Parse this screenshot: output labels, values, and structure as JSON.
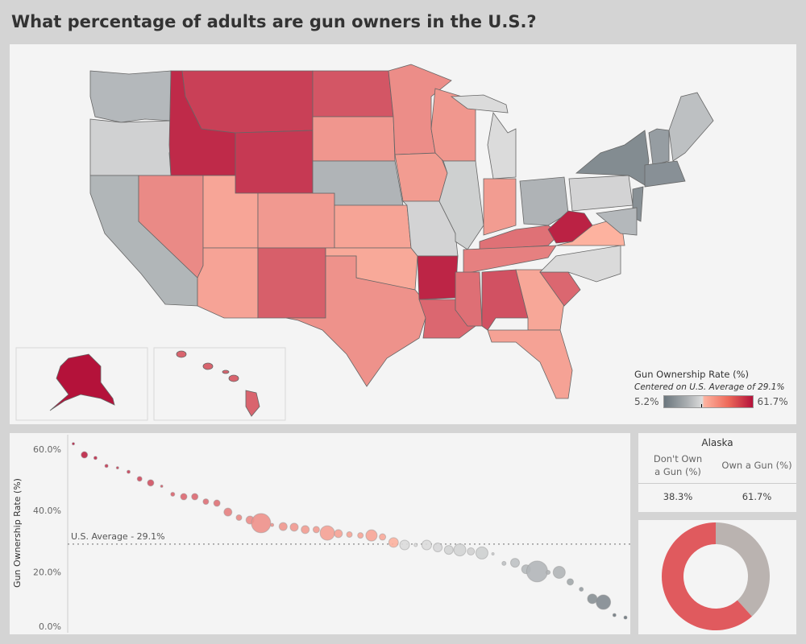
{
  "title": "What percentage of adults are gun owners in the U.S.?",
  "legend": {
    "title": "Gun Ownership Rate (%)",
    "subtitle": "Centered on U.S. Average of 29.1%",
    "min_label": "5.2%",
    "max_label": "61.7%"
  },
  "colors": {
    "low": "#6b767d",
    "mid_low": "#dcdcdc",
    "mid_high": "#fdb3a0",
    "high": "#b4123a",
    "donut_own": "#e05a5e",
    "donut_not": "#bab3b0"
  },
  "map_states": [
    {
      "id": "WA",
      "value": 20.7
    },
    {
      "id": "OR",
      "value": 26.6
    },
    {
      "id": "CA",
      "value": 20.1
    },
    {
      "id": "ID",
      "value": 56.9
    },
    {
      "id": "MT",
      "value": 52.3
    },
    {
      "id": "WY",
      "value": 53.8
    },
    {
      "id": "NV",
      "value": 37.5
    },
    {
      "id": "UT",
      "value": 31.9
    },
    {
      "id": "AZ",
      "value": 32.3
    },
    {
      "id": "CO",
      "value": 34.3
    },
    {
      "id": "NM",
      "value": 46.2
    },
    {
      "id": "ND",
      "value": 47.9
    },
    {
      "id": "SD",
      "value": 35.0
    },
    {
      "id": "NE",
      "value": 19.8
    },
    {
      "id": "KS",
      "value": 32.2
    },
    {
      "id": "OK",
      "value": 31.2
    },
    {
      "id": "TX",
      "value": 35.7
    },
    {
      "id": "MN",
      "value": 36.7
    },
    {
      "id": "IA",
      "value": 33.8
    },
    {
      "id": "MO",
      "value": 27.1
    },
    {
      "id": "AR",
      "value": 57.9
    },
    {
      "id": "LA",
      "value": 44.5
    },
    {
      "id": "WI",
      "value": 34.7
    },
    {
      "id": "IL",
      "value": 26.2
    },
    {
      "id": "MI",
      "value": 28.8
    },
    {
      "id": "IN",
      "value": 33.8
    },
    {
      "id": "OH",
      "value": 19.6
    },
    {
      "id": "KY",
      "value": 42.4
    },
    {
      "id": "TN",
      "value": 39.4
    },
    {
      "id": "MS",
      "value": 42.8
    },
    {
      "id": "AL",
      "value": 48.9
    },
    {
      "id": "GA",
      "value": 31.6
    },
    {
      "id": "FL",
      "value": 32.5
    },
    {
      "id": "SC",
      "value": 44.4
    },
    {
      "id": "NC",
      "value": 28.7
    },
    {
      "id": "VA",
      "value": 29.3
    },
    {
      "id": "WV",
      "value": 58.5
    },
    {
      "id": "PA",
      "value": 27.1
    },
    {
      "id": "NY",
      "value": 10.3
    },
    {
      "id": "NH",
      "value": 14.4
    },
    {
      "id": "ME",
      "value": 22.6
    },
    {
      "id": "MA",
      "value": 11.4
    },
    {
      "id": "NJ",
      "value": 11.3
    },
    {
      "id": "MD",
      "value": 20.7
    },
    {
      "id": "AK",
      "value": 61.7
    },
    {
      "id": "HI",
      "value": 45.1
    }
  ],
  "scatter": {
    "ylabel": "Gun Ownership Rate (%)",
    "ticks": [
      "0.0%",
      "20.0%",
      "40.0%",
      "60.0%"
    ],
    "tick_values": [
      0,
      20,
      40,
      60
    ],
    "ylim": [
      0,
      65
    ],
    "average_label": "U.S. Average - 29.1%",
    "average": 29.1
  },
  "chart_data": {
    "type": "scatter",
    "ylabel": "Gun Ownership Rate (%)",
    "ylim": [
      0,
      65
    ],
    "reference_line": {
      "label": "U.S. Average - 29.1%",
      "value": 29.1
    },
    "points": [
      {
        "rank": 1,
        "value": 61.7,
        "size": 1.5
      },
      {
        "rank": 2,
        "value": 58.1,
        "size": 4
      },
      {
        "rank": 3,
        "value": 57.1,
        "size": 2
      },
      {
        "rank": 4,
        "value": 54.5,
        "size": 2
      },
      {
        "rank": 5,
        "value": 53.9,
        "size": 1.5
      },
      {
        "rank": 6,
        "value": 52.6,
        "size": 2
      },
      {
        "rank": 7,
        "value": 50.3,
        "size": 3
      },
      {
        "rank": 8,
        "value": 49.0,
        "size": 4
      },
      {
        "rank": 9,
        "value": 47.9,
        "size": 1.5
      },
      {
        "rank": 10,
        "value": 45.3,
        "size": 2.5
      },
      {
        "rank": 11,
        "value": 44.5,
        "size": 4
      },
      {
        "rank": 12,
        "value": 44.5,
        "size": 4
      },
      {
        "rank": 13,
        "value": 42.9,
        "size": 3.5
      },
      {
        "rank": 14,
        "value": 42.4,
        "size": 4
      },
      {
        "rank": 15,
        "value": 39.5,
        "size": 5
      },
      {
        "rank": 16,
        "value": 37.7,
        "size": 3.5
      },
      {
        "rank": 17,
        "value": 36.9,
        "size": 5
      },
      {
        "rank": 18,
        "value": 35.9,
        "size": 12
      },
      {
        "rank": 19,
        "value": 35.3,
        "size": 2
      },
      {
        "rank": 20,
        "value": 34.8,
        "size": 5
      },
      {
        "rank": 21,
        "value": 34.6,
        "size": 5
      },
      {
        "rank": 22,
        "value": 33.8,
        "size": 5
      },
      {
        "rank": 23,
        "value": 33.8,
        "size": 4
      },
      {
        "rank": 24,
        "value": 32.7,
        "size": 9
      },
      {
        "rank": 25,
        "value": 32.5,
        "size": 5
      },
      {
        "rank": 26,
        "value": 32.2,
        "size": 3.5
      },
      {
        "rank": 27,
        "value": 31.9,
        "size": 3.5
      },
      {
        "rank": 28,
        "value": 31.9,
        "size": 7
      },
      {
        "rank": 29,
        "value": 31.4,
        "size": 4
      },
      {
        "rank": 30,
        "value": 29.6,
        "size": 6
      },
      {
        "rank": 31,
        "value": 28.8,
        "size": 6
      },
      {
        "rank": 32,
        "value": 28.8,
        "size": 2
      },
      {
        "rank": 33,
        "value": 28.8,
        "size": 6
      },
      {
        "rank": 34,
        "value": 28.0,
        "size": 5.5
      },
      {
        "rank": 35,
        "value": 27.2,
        "size": 5.5
      },
      {
        "rank": 36,
        "value": 27.2,
        "size": 7.5
      },
      {
        "rank": 37,
        "value": 26.7,
        "size": 4.5
      },
      {
        "rank": 38,
        "value": 26.2,
        "size": 7.5
      },
      {
        "rank": 39,
        "value": 25.9,
        "size": 1.5
      },
      {
        "rank": 40,
        "value": 22.8,
        "size": 2.5
      },
      {
        "rank": 41,
        "value": 23.0,
        "size": 5.5
      },
      {
        "rank": 42,
        "value": 20.9,
        "size": 5.5
      },
      {
        "rank": 43,
        "value": 20.2,
        "size": 13
      },
      {
        "rank": 44,
        "value": 19.9,
        "size": 2.5
      },
      {
        "rank": 45,
        "value": 19.9,
        "size": 7.5
      },
      {
        "rank": 46,
        "value": 16.8,
        "size": 4
      },
      {
        "rank": 47,
        "value": 14.4,
        "size": 2.5
      },
      {
        "rank": 48,
        "value": 11.3,
        "size": 6
      },
      {
        "rank": 49,
        "value": 10.2,
        "size": 9
      },
      {
        "rank": 50,
        "value": 6.0,
        "size": 2
      },
      {
        "rank": 51,
        "value": 5.2,
        "size": 2
      }
    ]
  },
  "state_detail": {
    "state": "Alaska",
    "col_not": "Don't Own a Gun (%)",
    "col_own": "Own a Gun (%)",
    "not_value": "38.3%",
    "own_value": "61.7%",
    "own_pct": 61.7,
    "not_pct": 38.3
  }
}
